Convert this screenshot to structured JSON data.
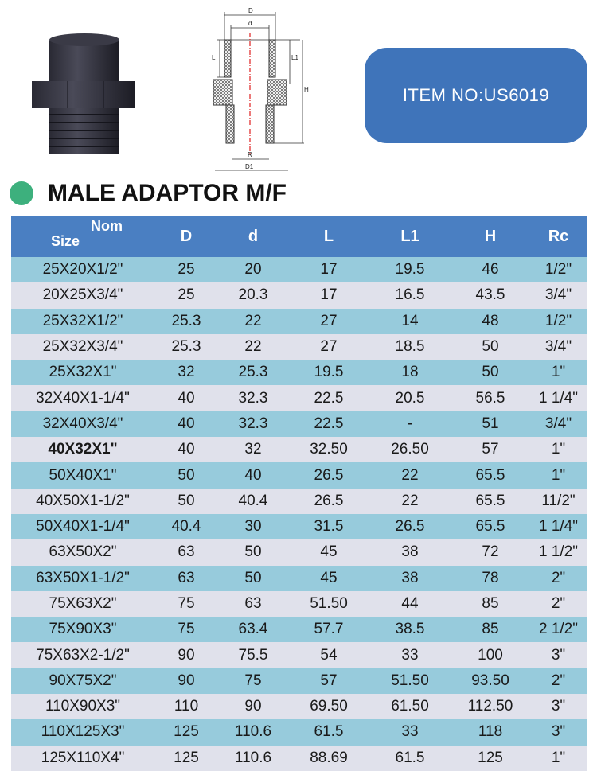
{
  "item_no": "ITEM NO:US6019",
  "title": "MALE ADAPTOR M/F",
  "colors": {
    "header": "#4a7fc2",
    "row_blue": "#97cbdc",
    "row_gray": "#e0e1eb",
    "pill": "#3f74ba",
    "bullet": "#3db07d"
  },
  "diagram_labels": {
    "D": "D",
    "d": "d",
    "L": "L",
    "L1": "L1",
    "H": "H",
    "R": "R",
    "D1": "D1"
  },
  "table": {
    "size_label": "Size",
    "nom_label": "Nom",
    "columns": [
      "D",
      "d",
      "L",
      "L1",
      "H",
      "Rc"
    ],
    "rows": [
      [
        "25X20X1/2\"",
        "25",
        "20",
        "17",
        "19.5",
        "46",
        "1/2\""
      ],
      [
        "20X25X3/4\"",
        "25",
        "20.3",
        "17",
        "16.5",
        "43.5",
        "3/4\""
      ],
      [
        "25X32X1/2\"",
        "25.3",
        "22",
        "27",
        "14",
        "48",
        "1/2\""
      ],
      [
        "25X32X3/4\"",
        "25.3",
        "22",
        "27",
        "18.5",
        "50",
        "3/4\""
      ],
      [
        "25X32X1\"",
        "32",
        "25.3",
        "19.5",
        "18",
        "50",
        "1\""
      ],
      [
        "32X40X1-1/4\"",
        "40",
        "32.3",
        "22.5",
        "20.5",
        "56.5",
        "1 1/4\""
      ],
      [
        "32X40X3/4\"",
        "40",
        "32.3",
        "22.5",
        "-",
        "51",
        "3/4\""
      ],
      [
        "40X32X1\"",
        "40",
        "32",
        "32.50",
        "26.50",
        "57",
        "1\""
      ],
      [
        "50X40X1\"",
        "50",
        "40",
        "26.5",
        "22",
        "65.5",
        "1\""
      ],
      [
        "40X50X1-1/2\"",
        "50",
        "40.4",
        "26.5",
        "22",
        "65.5",
        "11/2\""
      ],
      [
        "50X40X1-1/4\"",
        "40.4",
        "30",
        "31.5",
        "26.5",
        "65.5",
        "1 1/4\""
      ],
      [
        "63X50X2\"",
        "63",
        "50",
        "45",
        "38",
        "72",
        "1 1/2\""
      ],
      [
        "63X50X1-1/2\"",
        "63",
        "50",
        "45",
        "38",
        "78",
        "2\""
      ],
      [
        "75X63X2\"",
        "75",
        "63",
        "51.50",
        "44",
        "85",
        "2\""
      ],
      [
        "75X90X3\"",
        "75",
        "63.4",
        "57.7",
        "38.5",
        "85",
        "2 1/2\""
      ],
      [
        "75X63X2-1/2\"",
        "90",
        "75.5",
        "54",
        "33",
        "100",
        "3\""
      ],
      [
        "90X75X2\"",
        "90",
        "75",
        "57",
        "51.50",
        "93.50",
        "2\""
      ],
      [
        "110X90X3\"",
        "110",
        "90",
        "69.50",
        "61.50",
        "112.50",
        "3\""
      ],
      [
        "110X125X3\"",
        "125",
        "110.6",
        "61.5",
        "33",
        "118",
        "3\""
      ],
      [
        "125X110X4\"",
        "125",
        "110.6",
        "88.69",
        "61.5",
        "125",
        "1\""
      ]
    ]
  }
}
